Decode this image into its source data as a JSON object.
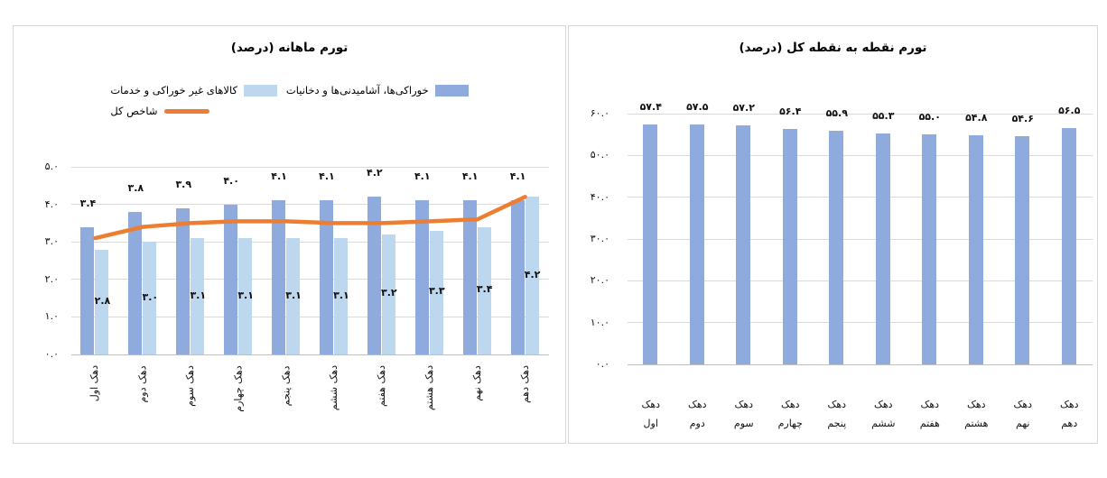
{
  "colors": {
    "food_bar": "#8FAADC",
    "nonfood_bar": "#BDD7EE",
    "total_line": "#ED7D31",
    "gridline": "#DADADA"
  },
  "chart_data": [
    {
      "type": "bar",
      "title": "تورم ماهانه (درصد)",
      "categories": [
        "دهک اول",
        "دهک دوم",
        "دهک سوم",
        "دهک چهارم",
        "دهک پنجم",
        "دهک ششم",
        "دهک هفتم",
        "دهک هشتم",
        "دهک نهم",
        "دهک دهم"
      ],
      "series": [
        {
          "name": "خوراکی‌ها، آشامیدنی‌ها و دخانیات",
          "type": "bar",
          "color": "#8FAADC",
          "values": [
            3.4,
            3.8,
            3.9,
            4.0,
            4.1,
            4.1,
            4.2,
            4.1,
            4.1,
            4.1
          ],
          "labels": [
            "۳.۴",
            "۳.۸",
            "۳.۹",
            "۴.۰",
            "۴.۱",
            "۴.۱",
            "۴.۲",
            "۴.۱",
            "۴.۱",
            "۴.۱"
          ],
          "label_position": "above"
        },
        {
          "name": "کالاهای غیر خوراکی و خدمات",
          "type": "bar",
          "color": "#BDD7EE",
          "values": [
            2.8,
            3.0,
            3.1,
            3.1,
            3.1,
            3.1,
            3.2,
            3.3,
            3.4,
            4.2
          ],
          "labels": [
            "۲.۸",
            "۳.۰",
            "۳.۱",
            "۳.۱",
            "۳.۱",
            "۳.۱",
            "۳.۲",
            "۳.۳",
            "۳.۴",
            "۴.۲"
          ],
          "label_position": "inside-center"
        },
        {
          "name": "شاخص کل",
          "type": "line",
          "color": "#ED7D31",
          "values": [
            3.1,
            3.4,
            3.5,
            3.55,
            3.55,
            3.5,
            3.5,
            3.55,
            3.6,
            4.2
          ]
        }
      ],
      "ylim": [
        0,
        5
      ],
      "ytick_values": [
        0,
        1,
        2,
        3,
        4,
        5
      ],
      "ytick_labels": [
        "۰.۰",
        "۱.۰",
        "۲.۰",
        "۳.۰",
        "۴.۰",
        "۵.۰"
      ],
      "grid": true,
      "legend_position": "top"
    },
    {
      "type": "bar",
      "title": "تورم نقطه به نقطه کل (درصد)",
      "categories": [
        "دهک اول",
        "دهک دوم",
        "دهک سوم",
        "دهک چهارم",
        "دهک پنجم",
        "دهک ششم",
        "دهک هفتم",
        "دهک هشتم",
        "دهک نهم",
        "دهک دهم"
      ],
      "series": [
        {
          "type": "bar",
          "color": "#8FAADC",
          "values": [
            57.4,
            57.5,
            57.2,
            56.4,
            55.9,
            55.3,
            55.0,
            54.8,
            54.6,
            56.5
          ],
          "labels": [
            "۵۷.۴",
            "۵۷.۵",
            "۵۷.۲",
            "۵۶.۴",
            "۵۵.۹",
            "۵۵.۳",
            "۵۵.۰",
            "۵۴.۸",
            "۵۴.۶",
            "۵۶.۵"
          ],
          "label_position": "above"
        }
      ],
      "ylim": [
        0,
        60
      ],
      "ytick_values": [
        0,
        10,
        20,
        30,
        40,
        50,
        60
      ],
      "ytick_labels": [
        "۰.۰",
        "۱۰.۰",
        "۲۰.۰",
        "۳۰.۰",
        "۴۰.۰",
        "۵۰.۰",
        "۶۰.۰"
      ],
      "grid": true,
      "legend_position": "none"
    }
  ]
}
